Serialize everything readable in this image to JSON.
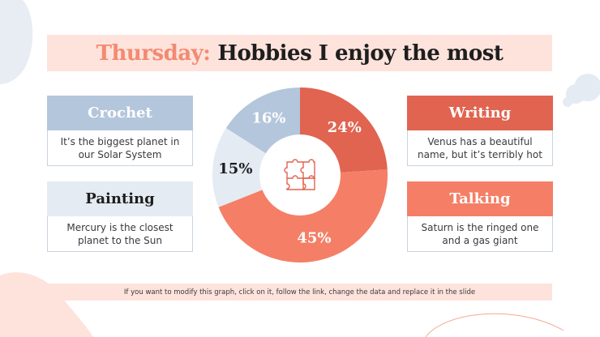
{
  "title": {
    "accent": "Thursday:",
    "rest": "Hobbies I enjoy the most"
  },
  "colors": {
    "blue": "#b4c6dc",
    "light_blue": "#e4ebf3",
    "coral": "#f47f66",
    "red": "#e06450",
    "salmon": "#f08a72",
    "pink": "#fde3dc"
  },
  "cards": {
    "crochet": {
      "title": "Crochet",
      "body": "It’s the biggest planet in our Solar System"
    },
    "painting": {
      "title": "Painting",
      "body": "Mercury is the closest planet to the Sun"
    },
    "writing": {
      "title": "Writing",
      "body": "Venus has a beautiful name, but it’s terribly hot"
    },
    "talking": {
      "title": "Talking",
      "body": "Saturn is the ringed one and a gas giant"
    }
  },
  "chart_data": {
    "type": "pie",
    "variant": "donut",
    "center_icon": "puzzle-icon",
    "slices": [
      {
        "label": "24%",
        "value": 24,
        "color": "#e06450",
        "text_color": "#ffffff"
      },
      {
        "label": "45%",
        "value": 45,
        "color": "#f47f66",
        "text_color": "#ffffff"
      },
      {
        "label": "15%",
        "value": 15,
        "color": "#e4ebf3",
        "text_color": "#1e1e1e"
      },
      {
        "label": "16%",
        "value": 16,
        "color": "#b4c6dc",
        "text_color": "#ffffff"
      }
    ]
  },
  "footer": {
    "note": "If you want to modify this graph, click on it, follow the link, change the data and replace it in the slide"
  }
}
